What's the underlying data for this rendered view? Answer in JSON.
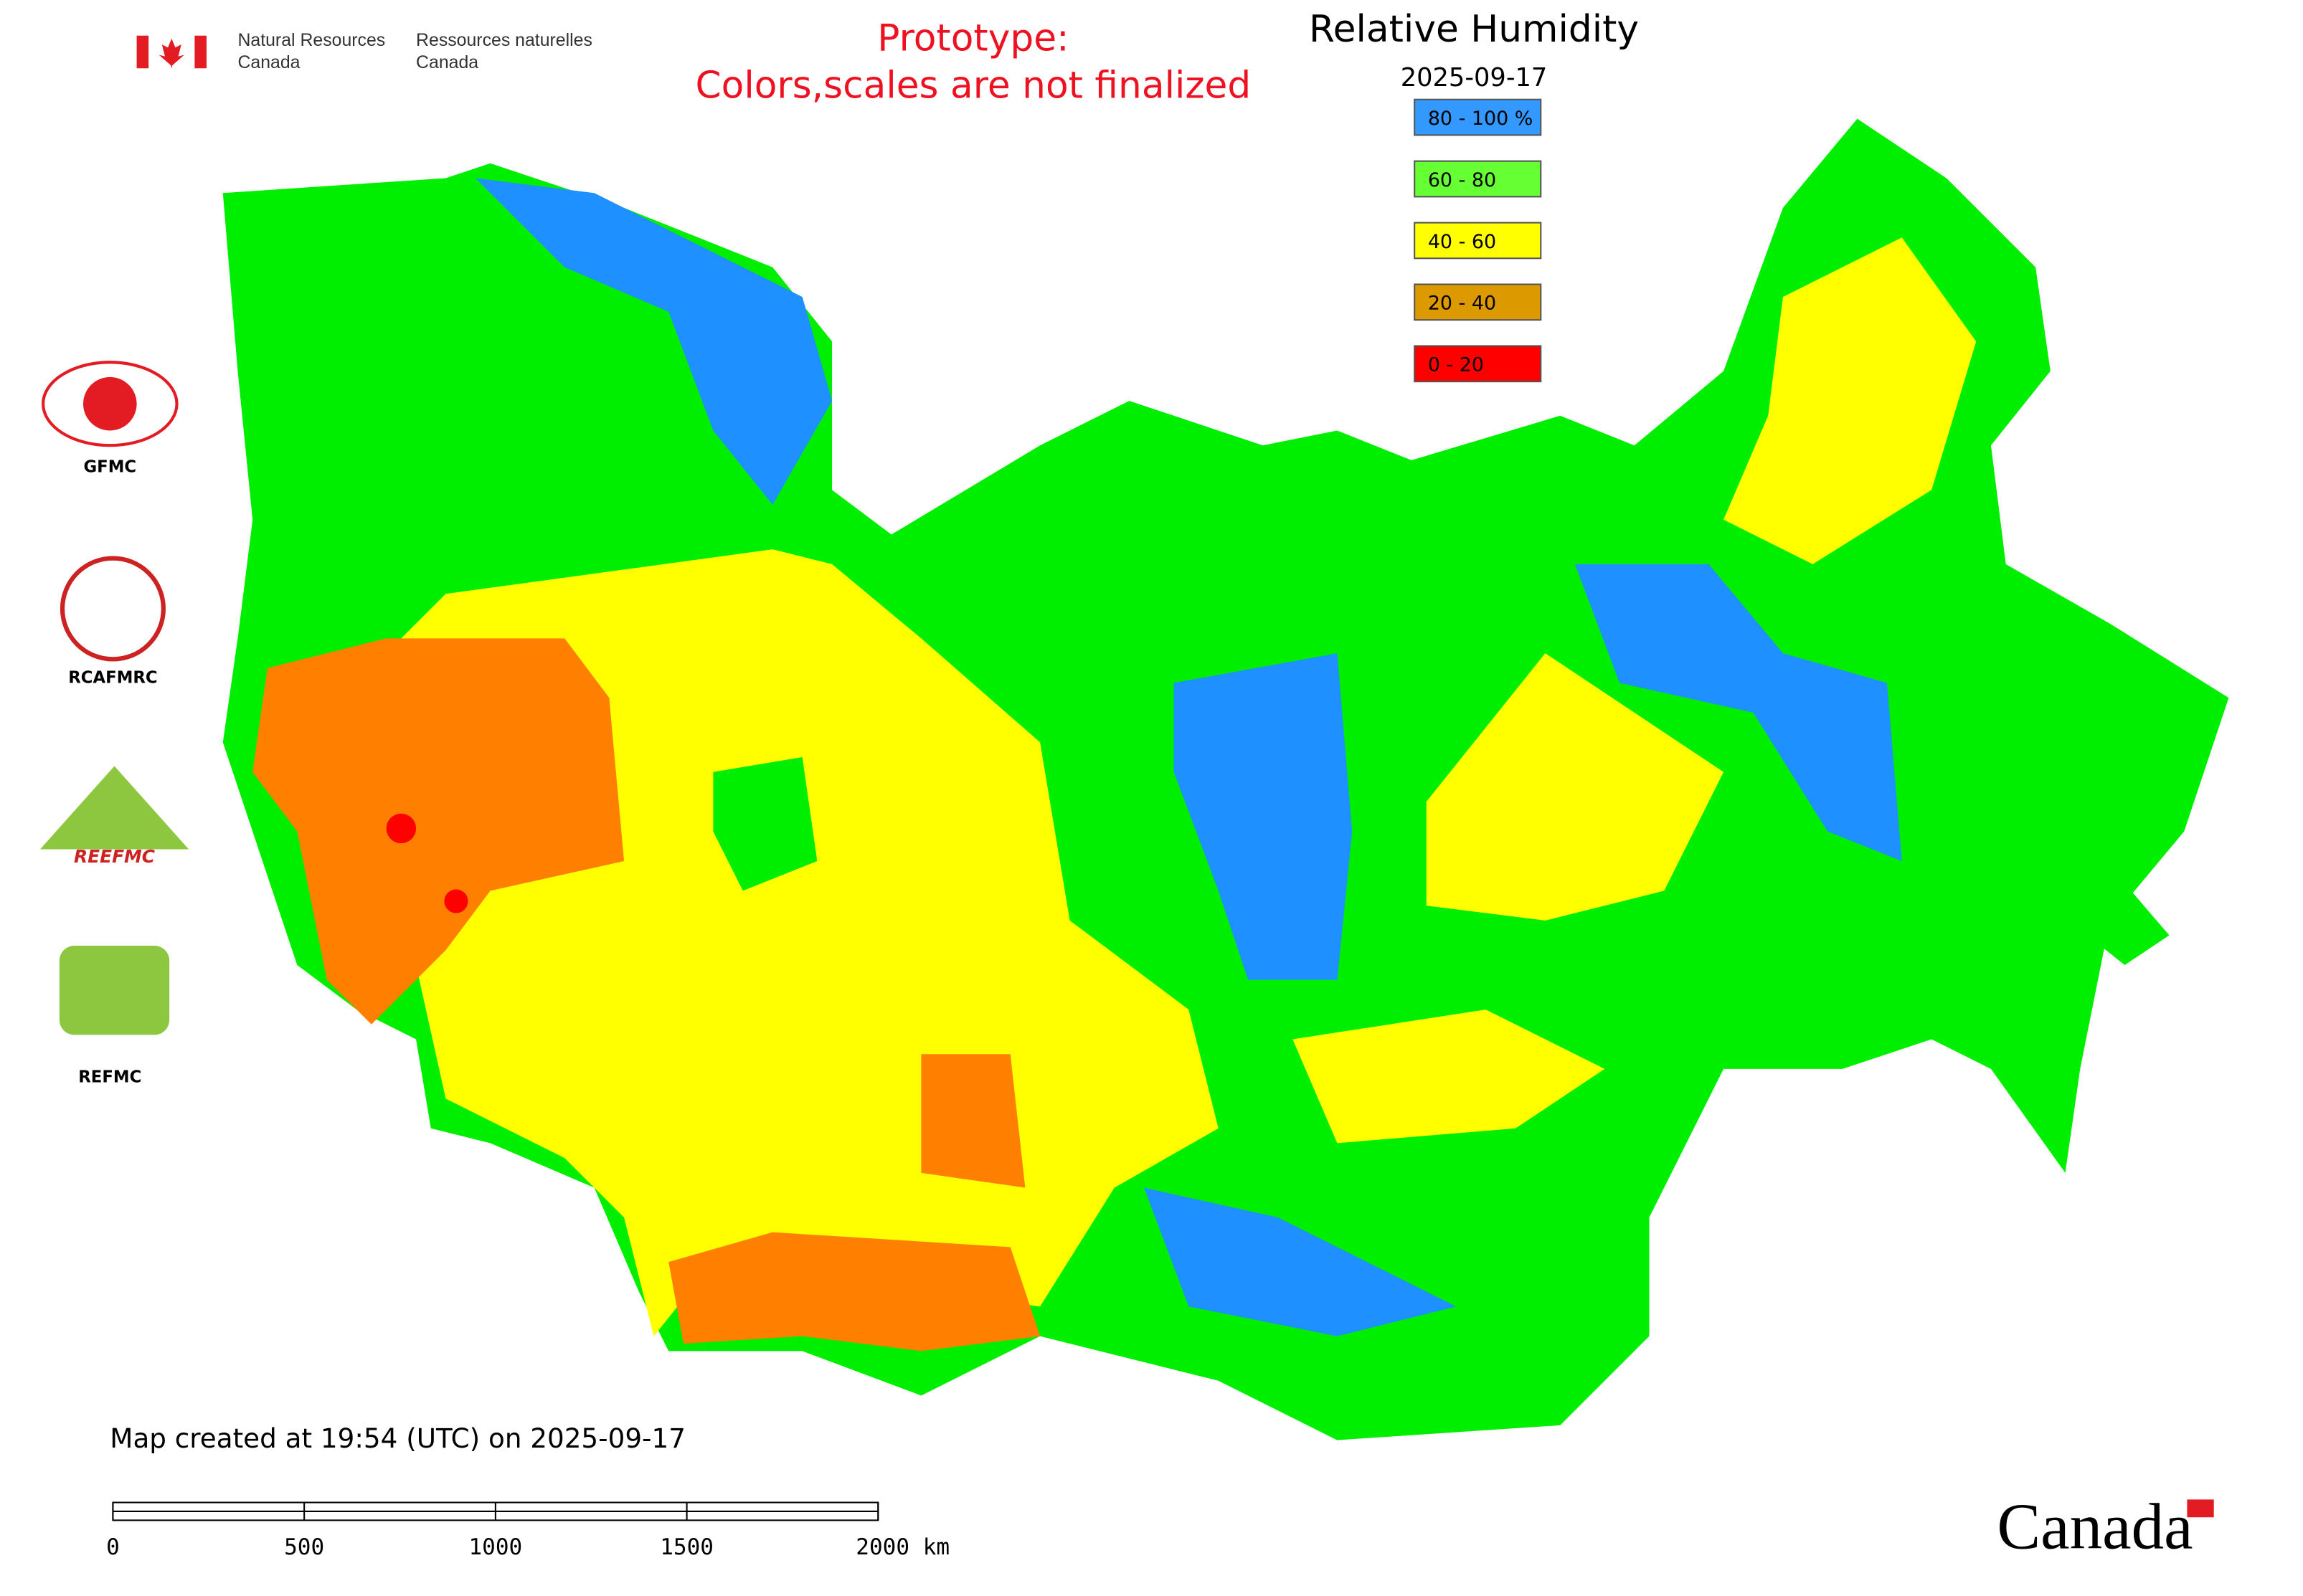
{
  "header": {
    "agency_en": [
      "Natural Resources",
      "Canada"
    ],
    "agency_fr": [
      "Ressources naturelles",
      "Canada"
    ],
    "notice": [
      "Prototype:",
      "Colors,scales are not finalized"
    ]
  },
  "title": "Relative Humidity",
  "date": "2025-09-17",
  "legend": [
    {
      "label": "80 - 100 %",
      "color": "#3399ff"
    },
    {
      "label": "60 - 80",
      "color": "#66ff33"
    },
    {
      "label": "40 - 60",
      "color": "#ffff00"
    },
    {
      "label": "20 - 40",
      "color": "#dd9900"
    },
    {
      "label": "0 - 20",
      "color": "#ff0000"
    }
  ],
  "logos": [
    "GFMC",
    "RCAFMRC",
    "REEFMC",
    "REFMC"
  ],
  "footer": {
    "created": "Map created at 19:54 (UTC) on 2025-09-17",
    "scale_labels": [
      "0",
      "500",
      "1000",
      "1500",
      "2000 km"
    ],
    "wordmark": "Canada"
  }
}
